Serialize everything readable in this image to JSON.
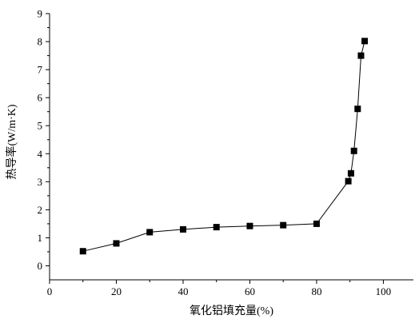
{
  "chart_data": {
    "type": "line",
    "title": "",
    "xlabel": "氧化铝填充量(%)",
    "ylabel": "热导率(W/m·K)",
    "xlim": [
      0,
      109
    ],
    "ylim": [
      -0.5,
      9
    ],
    "xticks": [
      0,
      20,
      40,
      60,
      80,
      100
    ],
    "yticks": [
      0,
      1,
      2,
      3,
      4,
      5,
      6,
      7,
      8,
      9
    ],
    "grid": false,
    "series": [
      {
        "marker": "square",
        "color": "#000000",
        "x": [
          10,
          20,
          30,
          40,
          50,
          60,
          70,
          80,
          89.5,
          90.3,
          91.2,
          92.3,
          93.3,
          94.4
        ],
        "y": [
          0.52,
          0.8,
          1.2,
          1.3,
          1.38,
          1.42,
          1.45,
          1.5,
          3.02,
          3.3,
          4.1,
          5.6,
          7.5,
          8.02
        ]
      }
    ]
  }
}
